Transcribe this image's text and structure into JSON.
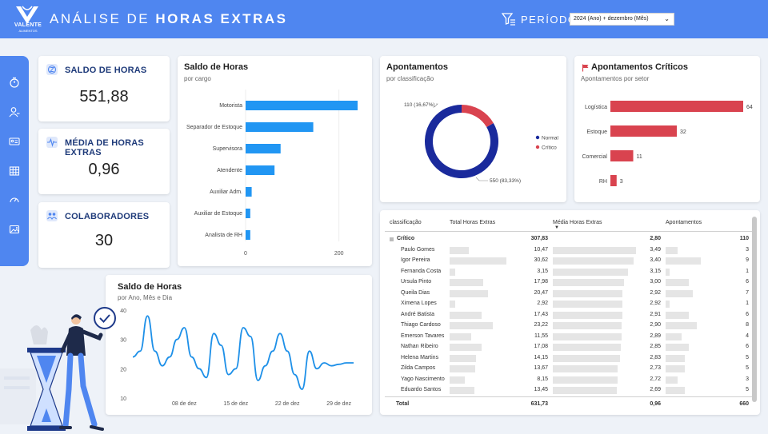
{
  "header": {
    "logo_name": "VALENTE",
    "logo_sub": "ALIMENTOS",
    "title_prefix": "ANÁLISE DE",
    "title_bold": "HORAS EXTRAS",
    "period_label": "PERÍODO",
    "period_value": "2024 (Ano) + dezembro (Mês)"
  },
  "sidebar": {
    "icons": [
      "stopwatch-icon",
      "user-icon",
      "id-card-icon",
      "table-icon",
      "gauge-icon",
      "image-icon"
    ]
  },
  "kpis": [
    {
      "label": "SALDO DE HORAS",
      "value": "551,88"
    },
    {
      "label": "MÉDIA DE HORAS EXTRAS",
      "value": "0,96"
    },
    {
      "label": "COLABORADORES",
      "value": "30"
    }
  ],
  "colors": {
    "accent": "#4f86f0",
    "bar_blue": "#2196f3",
    "donut_normal": "#1a2a9c",
    "donut_critico": "#d9434f",
    "bar_red": "#d9434f",
    "line": "#1e90e8"
  },
  "chart_data": [
    {
      "id": "saldo_cargo",
      "type": "bar",
      "orientation": "horizontal",
      "title": "Saldo de Horas",
      "subtitle": "por cargo",
      "categories": [
        "Motorista",
        "Separador de Estoque",
        "Supervisora",
        "Atendente",
        "Auxiliar Adm.",
        "Auxiliar de Estoque",
        "Analista de RH"
      ],
      "values": [
        240,
        145,
        75,
        62,
        13,
        10,
        10
      ],
      "xticks": [
        "0",
        "200"
      ],
      "xlim": [
        0,
        300
      ]
    },
    {
      "id": "apontamentos",
      "type": "pie",
      "title": "Apontamentos",
      "subtitle": "por classificação",
      "labels": [
        "Normal",
        "Crítico"
      ],
      "values": [
        550,
        110
      ],
      "data_labels": [
        "550 (83,33%)",
        "110 (16,67%)"
      ]
    },
    {
      "id": "criticos_setor",
      "type": "bar",
      "orientation": "horizontal",
      "title": "Apontamentos Críticos",
      "subtitle": "Apontamentos por setor",
      "categories": [
        "Logística",
        "Estoque",
        "Comercial",
        "RH"
      ],
      "values": [
        64,
        32,
        11,
        3
      ],
      "data_labels": [
        "64",
        "32",
        "11",
        "3"
      ],
      "xlim": [
        0,
        64
      ]
    },
    {
      "id": "saldo_tempo",
      "type": "line",
      "title": "Saldo de Horas",
      "subtitle": "por Ano, Mês e Dia",
      "x": [
        1,
        2,
        3,
        4,
        5,
        6,
        7,
        8,
        9,
        10,
        11,
        12,
        13,
        14,
        15,
        16,
        17,
        18,
        19,
        20,
        21,
        22,
        23,
        24,
        25,
        26,
        27,
        28,
        29,
        30,
        31
      ],
      "y": [
        24,
        26,
        38,
        26,
        21,
        24,
        30,
        34,
        24,
        20,
        17,
        32,
        28,
        18,
        20,
        34,
        31,
        16,
        21,
        26,
        32,
        26,
        18,
        13,
        26,
        20,
        22,
        21,
        21.5,
        22,
        22
      ],
      "xticks": [
        "08 de dez",
        "15 de dez",
        "22 de dez",
        "29 de dez"
      ],
      "yticks": [
        "10",
        "20",
        "30",
        "40"
      ],
      "ylim": [
        10,
        40
      ]
    },
    {
      "id": "tabela",
      "type": "table",
      "columns": [
        "classificação",
        "Total Horas Extras",
        "Média Horas Extras",
        "Apontamentos"
      ],
      "group": {
        "name": "Crítico",
        "total": "307,83",
        "media": "2,80",
        "apont": "110"
      },
      "rows": [
        {
          "name": "Paulo Gomes",
          "total": "10,47",
          "media": "3,49",
          "apont": "3",
          "t": 10.47,
          "m": 3.49,
          "a": 3
        },
        {
          "name": "Igor Pereira",
          "total": "30,62",
          "media": "3,40",
          "apont": "9",
          "t": 30.62,
          "m": 3.4,
          "a": 9
        },
        {
          "name": "Fernanda Costa",
          "total": "3,15",
          "media": "3,15",
          "apont": "1",
          "t": 3.15,
          "m": 3.15,
          "a": 1
        },
        {
          "name": "Ursula Pinto",
          "total": "17,98",
          "media": "3,00",
          "apont": "6",
          "t": 17.98,
          "m": 3.0,
          "a": 6
        },
        {
          "name": "Queila Dias",
          "total": "20,47",
          "media": "2,92",
          "apont": "7",
          "t": 20.47,
          "m": 2.92,
          "a": 7
        },
        {
          "name": "Ximena Lopes",
          "total": "2,92",
          "media": "2,92",
          "apont": "1",
          "t": 2.92,
          "m": 2.92,
          "a": 1
        },
        {
          "name": "André Batista",
          "total": "17,43",
          "media": "2,91",
          "apont": "6",
          "t": 17.43,
          "m": 2.91,
          "a": 6
        },
        {
          "name": "Thiago Cardoso",
          "total": "23,22",
          "media": "2,90",
          "apont": "8",
          "t": 23.22,
          "m": 2.9,
          "a": 8
        },
        {
          "name": "Emerson Tavares",
          "total": "11,55",
          "media": "2,89",
          "apont": "4",
          "t": 11.55,
          "m": 2.89,
          "a": 4
        },
        {
          "name": "Nathan Ribeiro",
          "total": "17,08",
          "media": "2,85",
          "apont": "6",
          "t": 17.08,
          "m": 2.85,
          "a": 6
        },
        {
          "name": "Helena Martins",
          "total": "14,15",
          "media": "2,83",
          "apont": "5",
          "t": 14.15,
          "m": 2.83,
          "a": 5
        },
        {
          "name": "Zilda Campos",
          "total": "13,67",
          "media": "2,73",
          "apont": "5",
          "t": 13.67,
          "m": 2.73,
          "a": 5
        },
        {
          "name": "Yago Nascimento",
          "total": "8,15",
          "media": "2,72",
          "apont": "3",
          "t": 8.15,
          "m": 2.72,
          "a": 3
        },
        {
          "name": "Eduardo Santos",
          "total": "13,45",
          "media": "2,69",
          "apont": "5",
          "t": 13.45,
          "m": 2.69,
          "a": 5
        }
      ],
      "footer": {
        "label": "Total",
        "total": "631,73",
        "media": "0,96",
        "apont": "660"
      }
    }
  ]
}
